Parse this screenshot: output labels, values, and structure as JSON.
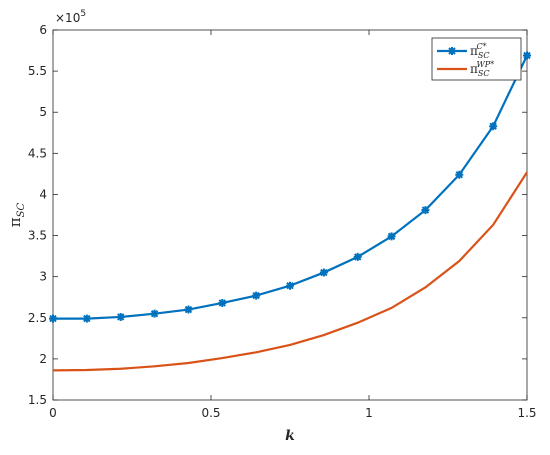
{
  "chart_data": {
    "type": "line",
    "x": [
      0,
      0.1071,
      0.2143,
      0.3214,
      0.4286,
      0.5357,
      0.6429,
      0.75,
      0.8571,
      0.9643,
      1.0714,
      1.1786,
      1.2857,
      1.3929,
      1.5
    ],
    "series": [
      {
        "name": "π",
        "subscript": "SC",
        "superscript": "C*",
        "color": "#0072BD",
        "marker": "asterisk",
        "values": [
          2.49,
          2.49,
          2.51,
          2.55,
          2.6,
          2.68,
          2.77,
          2.89,
          3.05,
          3.24,
          3.49,
          3.81,
          4.24,
          4.83,
          5.69
        ]
      },
      {
        "name": "π",
        "subscript": "SC",
        "superscript": "WP*",
        "color": "#D95319",
        "marker": null,
        "values": [
          1.86,
          1.865,
          1.88,
          1.91,
          1.95,
          2.01,
          2.08,
          2.17,
          2.29,
          2.44,
          2.62,
          2.87,
          3.19,
          3.63,
          4.27
        ]
      }
    ],
    "xlabel": "k",
    "ylabel": "π",
    "ylabel_subscript": "SC",
    "y_multiplier": "×10",
    "y_multiplier_exponent": "5",
    "xlim": [
      0,
      1.5
    ],
    "xticks": [
      0,
      0.5,
      1,
      1.5
    ],
    "ylim": [
      1.5,
      6
    ],
    "yticks": [
      1.5,
      2,
      2.5,
      3,
      3.5,
      4,
      4.5,
      5,
      5.5,
      6
    ],
    "grid": false,
    "legend": "upper right"
  }
}
